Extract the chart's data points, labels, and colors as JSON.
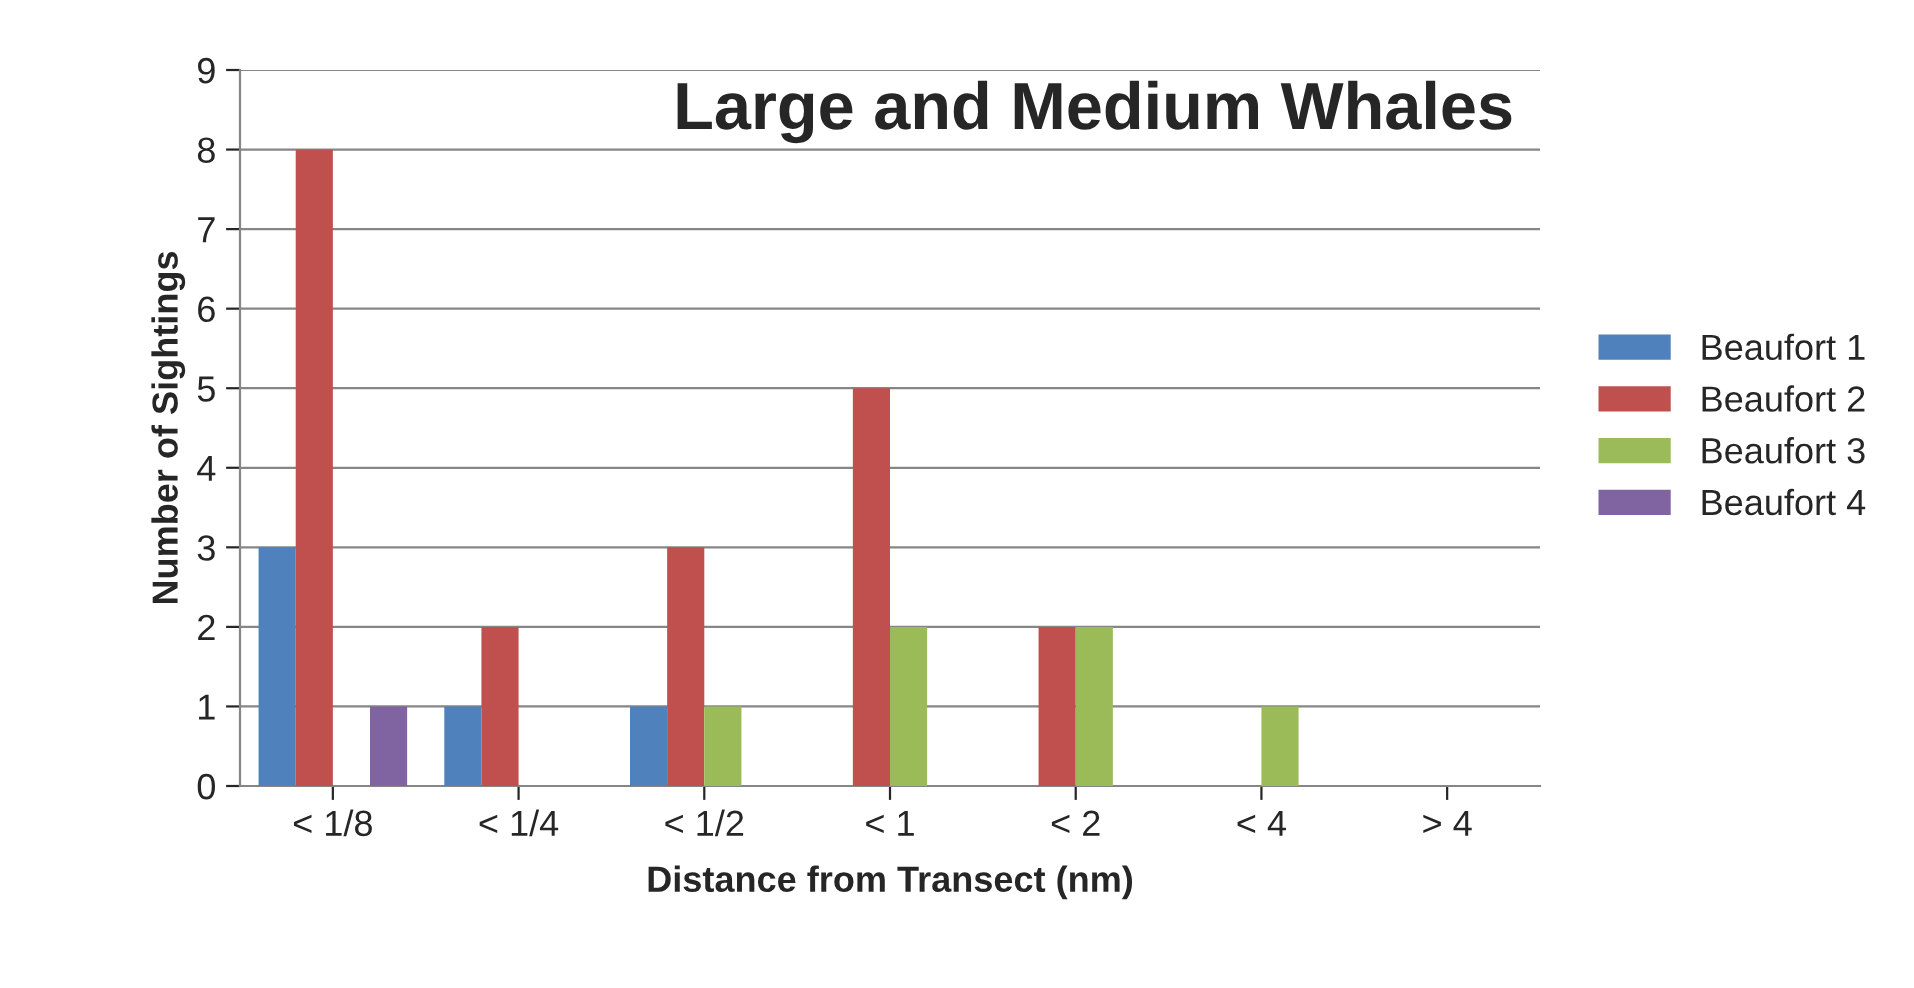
{
  "chart_data": {
    "type": "bar",
    "title": "Large and Medium Whales",
    "xlabel": "Distance from Transect (nm)",
    "ylabel": "Number of Sightings",
    "categories": [
      "< 1/8",
      "< 1/4",
      "< 1/2",
      "< 1",
      "< 2",
      "< 4",
      "> 4"
    ],
    "series": [
      {
        "name": "Beaufort 1",
        "color": "#4f81bd",
        "values": [
          3,
          1,
          1,
          0,
          0,
          0,
          0
        ]
      },
      {
        "name": "Beaufort 2",
        "color": "#c0504d",
        "values": [
          8,
          2,
          3,
          5,
          2,
          0,
          0
        ]
      },
      {
        "name": "Beaufort 3",
        "color": "#9bbb59",
        "values": [
          0,
          0,
          1,
          2,
          2,
          1,
          0
        ]
      },
      {
        "name": "Beaufort 4",
        "color": "#8064a2",
        "values": [
          1,
          0,
          0,
          0,
          0,
          0,
          0
        ]
      }
    ],
    "ylim": [
      0,
      9
    ],
    "yticks": [
      0,
      1,
      2,
      3,
      4,
      5,
      6,
      7,
      8,
      9
    ],
    "grid": "y",
    "legend": "right"
  }
}
